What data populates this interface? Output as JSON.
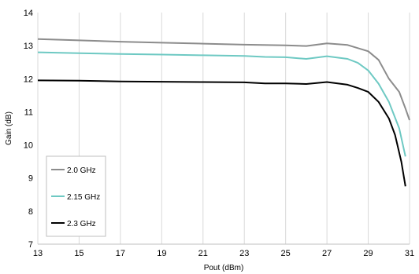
{
  "chart_data": {
    "type": "line",
    "title": "",
    "xlabel": "Pout (dBm)",
    "ylabel": "Gain (dB)",
    "xlim": [
      13,
      31
    ],
    "ylim": [
      7,
      14
    ],
    "x_ticks": [
      "13",
      "15",
      "17",
      "19",
      "21",
      "23",
      "25",
      "27",
      "29",
      "31"
    ],
    "y_ticks": [
      "7",
      "8",
      "9",
      "10",
      "11",
      "12",
      "13",
      "14"
    ],
    "grid": "vertical",
    "legend_position": "bottom-left",
    "series": [
      {
        "name": "2.0 GHz",
        "color": "#8c8c8c",
        "x": [
          13,
          15,
          17,
          19,
          21,
          23,
          25,
          26,
          27,
          28,
          29,
          29.5,
          30,
          30.5,
          30.8,
          31
        ],
        "y": [
          13.2,
          13.16,
          13.12,
          13.09,
          13.06,
          13.03,
          13.01,
          12.99,
          13.07,
          13.02,
          12.83,
          12.57,
          12.0,
          11.6,
          11.1,
          10.75
        ]
      },
      {
        "name": "2.15 GHz",
        "color": "#6ec9c3",
        "x": [
          13,
          15,
          17,
          19,
          21,
          23,
          24,
          25,
          26,
          27,
          28,
          28.5,
          29,
          29.5,
          30,
          30.5,
          30.8
        ],
        "y": [
          12.8,
          12.77,
          12.75,
          12.73,
          12.71,
          12.69,
          12.66,
          12.65,
          12.6,
          12.68,
          12.6,
          12.48,
          12.25,
          11.85,
          11.3,
          10.5,
          9.65
        ]
      },
      {
        "name": "2.3 GHz",
        "color": "#000000",
        "x": [
          13,
          15,
          17,
          19,
          21,
          23,
          24,
          25,
          26,
          27,
          28,
          28.5,
          29,
          29.5,
          30,
          30.3,
          30.6,
          30.8
        ],
        "y": [
          11.95,
          11.94,
          11.92,
          11.91,
          11.9,
          11.89,
          11.86,
          11.86,
          11.84,
          11.9,
          11.82,
          11.72,
          11.6,
          11.3,
          10.8,
          10.3,
          9.5,
          8.75
        ]
      }
    ]
  }
}
